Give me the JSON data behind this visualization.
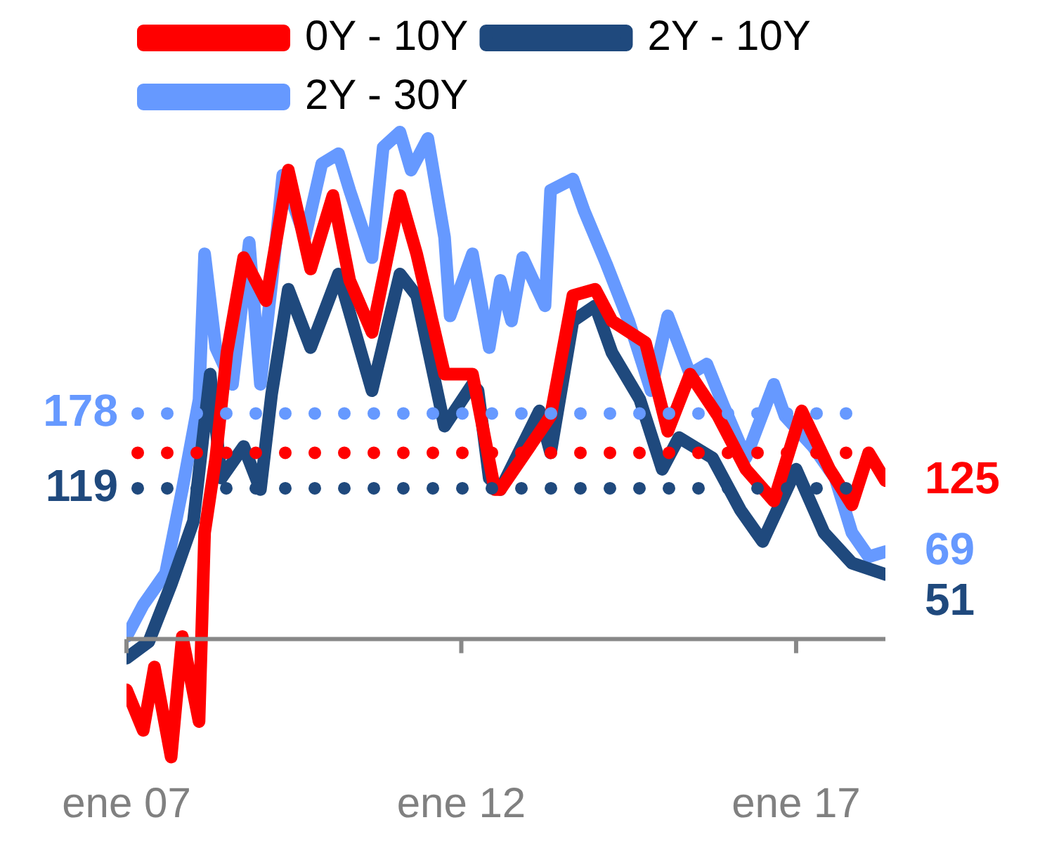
{
  "chart_data": {
    "type": "line",
    "legend": "top",
    "xlim": [
      "2007-01",
      "2018-05"
    ],
    "xticks": [
      {
        "value": "2007-01",
        "label": "ene 07"
      },
      {
        "value": "2012-01",
        "label": "ene 12"
      },
      {
        "value": "2017-01",
        "label": "ene 17"
      }
    ],
    "series": [
      {
        "name": "0Y - 10Y",
        "color": "#ff0000",
        "x": [
          "2007-01",
          "2007-04",
          "2007-06",
          "2007-09",
          "2007-11",
          "2008-02",
          "2008-03",
          "2008-05",
          "2008-07",
          "2008-10",
          "2009-02",
          "2009-06",
          "2009-10",
          "2010-02",
          "2010-05",
          "2010-09",
          "2011-02",
          "2011-05",
          "2011-10",
          "2012-03",
          "2012-07",
          "2012-08",
          "2013-05",
          "2013-09",
          "2014-01",
          "2014-04",
          "2014-10",
          "2015-02",
          "2015-06",
          "2015-11",
          "2016-04",
          "2016-09",
          "2017-02",
          "2017-07",
          "2017-11",
          "2018-02",
          "2018-05"
        ],
        "values": [
          -40,
          -72,
          -22,
          -93,
          2,
          -65,
          84,
          143,
          226,
          301,
          267,
          370,
          292,
          350,
          283,
          242,
          350,
          304,
          209,
          209,
          118,
          118,
          176,
          271,
          276,
          251,
          234,
          164,
          209,
          176,
          134,
          109,
          180,
          134,
          106,
          147,
          125
        ],
        "value_labels": [
          null,
          null,
          null,
          null,
          null,
          null,
          null,
          null,
          null,
          null,
          null,
          null,
          null,
          null,
          null,
          null,
          null,
          null,
          null,
          null,
          null,
          null,
          null,
          null,
          null,
          null,
          null,
          null,
          null,
          null,
          null,
          null,
          null,
          null,
          null,
          null,
          "125"
        ]
      },
      {
        "name": "2Y - 10Y",
        "color": "#1f497d",
        "x": [
          "2007-01",
          "2007-05",
          "2007-09",
          "2008-01",
          "2008-04",
          "2008-06",
          "2008-10",
          "2009-01",
          "2009-03",
          "2009-06",
          "2009-10",
          "2010-03",
          "2010-09",
          "2011-02",
          "2011-05",
          "2011-10",
          "2012-03",
          "2012-04",
          "2012-06",
          "2012-08",
          "2013-03",
          "2013-05",
          "2013-09",
          "2014-01",
          "2014-04",
          "2014-09",
          "2015-01",
          "2015-04",
          "2015-10",
          "2016-03",
          "2016-07",
          "2017-01",
          "2017-06",
          "2017-11",
          "2018-05"
        ],
        "values": [
          -15,
          -2,
          43,
          93,
          209,
          127,
          152,
          118,
          193,
          276,
          230,
          288,
          196,
          288,
          271,
          168,
          201,
          196,
          127,
          118,
          180,
          147,
          251,
          263,
          226,
          189,
          134,
          159,
          143,
          102,
          77,
          134,
          84,
          60,
          51
        ],
        "value_labels": [
          null,
          null,
          null,
          null,
          null,
          null,
          null,
          null,
          null,
          null,
          null,
          null,
          null,
          null,
          null,
          null,
          null,
          null,
          null,
          null,
          null,
          null,
          null,
          null,
          null,
          null,
          null,
          null,
          null,
          null,
          null,
          null,
          null,
          null,
          "51"
        ]
      },
      {
        "name": "2Y - 30Y",
        "color": "#6699ff",
        "x": [
          "2007-01",
          "2007-04",
          "2007-08",
          "2007-11",
          "2008-02",
          "2008-03",
          "2008-05",
          "2008-08",
          "2008-11",
          "2009-01",
          "2009-03",
          "2009-05",
          "2009-09",
          "2009-12",
          "2010-03",
          "2010-05",
          "2010-09",
          "2010-11",
          "2011-02",
          "2011-04",
          "2011-07",
          "2011-10",
          "2011-11",
          "2012-03",
          "2012-06",
          "2012-08",
          "2012-10",
          "2012-12",
          "2013-04",
          "2013-05",
          "2013-09",
          "2013-11",
          "2014-03",
          "2014-07",
          "2014-11",
          "2015-02",
          "2015-06",
          "2015-09",
          "2015-12",
          "2016-04",
          "2016-09",
          "2016-11",
          "2017-04",
          "2017-08",
          "2017-11",
          "2018-02",
          "2018-05"
        ],
        "values": [
          2,
          27,
          52,
          118,
          189,
          304,
          230,
          201,
          313,
          201,
          280,
          366,
          317,
          375,
          383,
          354,
          301,
          388,
          400,
          370,
          395,
          317,
          255,
          304,
          230,
          283,
          251,
          301,
          263,
          354,
          363,
          338,
          296,
          251,
          196,
          255,
          209,
          217,
          184,
          143,
          201,
          176,
          152,
          127,
          84,
          65,
          69
        ],
        "value_labels": [
          null,
          null,
          null,
          null,
          null,
          null,
          null,
          null,
          null,
          null,
          null,
          null,
          null,
          null,
          null,
          null,
          null,
          null,
          null,
          null,
          null,
          null,
          null,
          null,
          null,
          null,
          null,
          null,
          null,
          null,
          null,
          null,
          null,
          null,
          null,
          null,
          null,
          null,
          null,
          null,
          null,
          null,
          null,
          null,
          null,
          null,
          "69"
        ]
      }
    ],
    "ref_lines": [
      {
        "axis": "y",
        "value": 178,
        "label": "178",
        "color": "#6699ff",
        "line_style": "dotted"
      },
      {
        "axis": "y",
        "value": 147,
        "label": null,
        "color": "#ff0000",
        "line_style": "dotted"
      },
      {
        "axis": "y",
        "value": 119,
        "label": "119",
        "color": "#1f497d",
        "line_style": "dotted"
      }
    ]
  }
}
